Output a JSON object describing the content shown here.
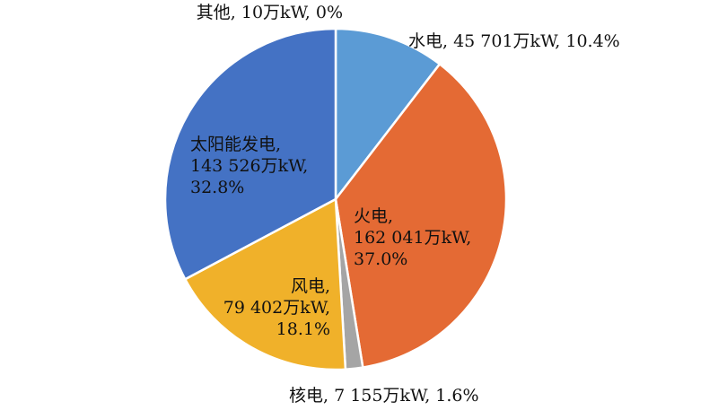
{
  "chart_data": {
    "type": "pie",
    "unit": "万kW",
    "slices": [
      {
        "name": "其他",
        "value": 10,
        "percent": "0%",
        "color": "#9E9E9E",
        "label_lines": [
          "其他, 10万kW, 0%"
        ]
      },
      {
        "name": "水电",
        "value": 45701,
        "percent": "10.4%",
        "color": "#5B9BD5",
        "label_lines": [
          "水电, 45 701万kW, 10.4%"
        ]
      },
      {
        "name": "火电",
        "value": 162041,
        "percent": "37.0%",
        "color": "#E46A34",
        "label_lines": [
          "火电,",
          "162 041万kW,",
          "37.0%"
        ]
      },
      {
        "name": "核电",
        "value": 7155,
        "percent": "1.6%",
        "color": "#A5A5A5",
        "label_lines": [
          "核电, 7 155万kW, 1.6%"
        ]
      },
      {
        "name": "风电",
        "value": 79402,
        "percent": "18.1%",
        "color": "#F0B12A",
        "label_lines": [
          "风电,",
          "79 402万kW,",
          "18.1%"
        ]
      },
      {
        "name": "太阳能发电",
        "value": 143526,
        "percent": "32.8%",
        "color": "#4472C4",
        "label_lines": [
          "太阳能发电,",
          "143 526万kW,",
          "32.8%"
        ]
      }
    ]
  }
}
